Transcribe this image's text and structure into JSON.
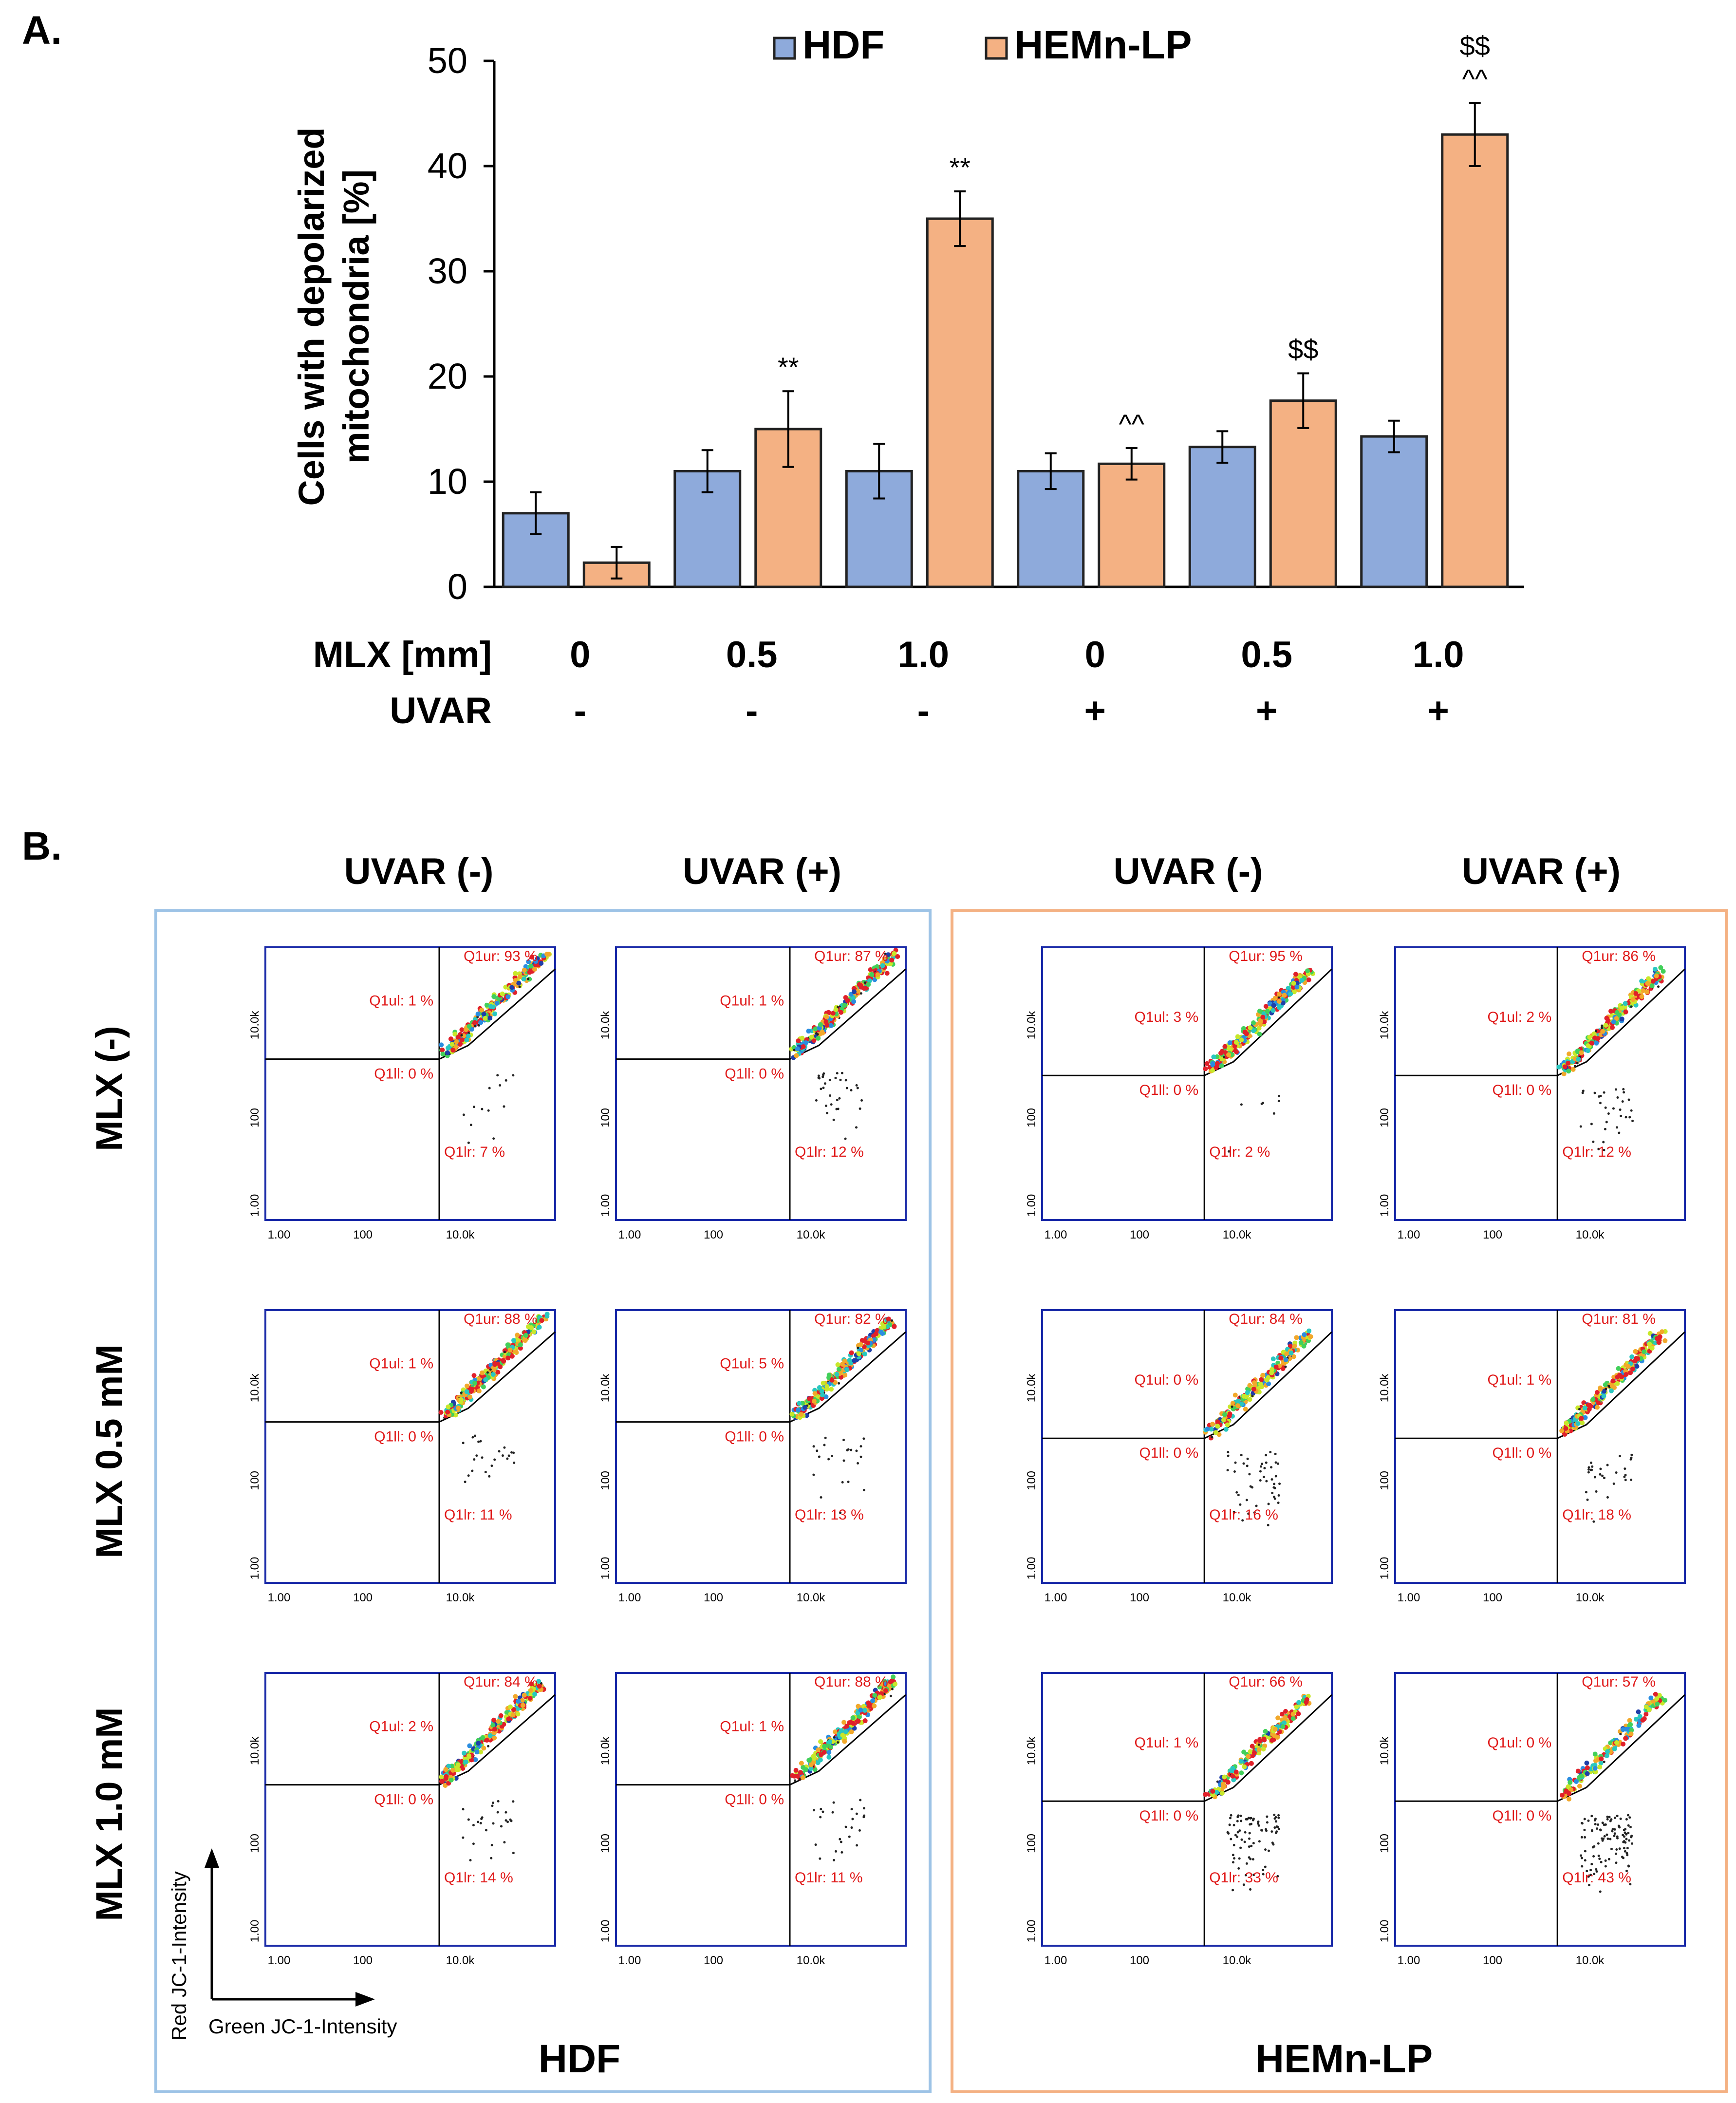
{
  "panel_a": {
    "label": "A.",
    "chart_data": {
      "type": "bar",
      "categories": [
        "MLX 0 / UVAR -",
        "MLX 0.5 / UVAR -",
        "MLX 1.0 / UVAR -",
        "MLX 0 / UVAR +",
        "MLX 0.5 / UVAR +",
        "MLX 1.0 / UVAR +"
      ],
      "series": [
        {
          "name": "HDF",
          "color": "#8eaadb",
          "values": [
            7,
            11,
            11,
            11,
            13.3,
            14.3
          ],
          "errors": [
            2.0,
            2.0,
            2.6,
            1.7,
            1.5,
            1.5
          ]
        },
        {
          "name": "HEMn-LP",
          "color": "#f4b183",
          "values": [
            2.3,
            15,
            35,
            11.7,
            17.7,
            43
          ],
          "errors": [
            1.5,
            3.6,
            2.6,
            1.5,
            2.6,
            3.0
          ]
        }
      ],
      "ylabel": "Cells with depolarized mitochondria [%]",
      "ylabel_line1": "Cells with depolarized",
      "ylabel_line2": "mitochondria [%]",
      "ylim": [
        0,
        50
      ],
      "yticks": [
        0,
        10,
        20,
        30,
        40,
        50
      ],
      "legend": [
        "HDF",
        "HEMn-LP"
      ],
      "legend_position": "top-center",
      "significance": [
        {
          "group": 1,
          "series": 1,
          "lines": [
            "**"
          ]
        },
        {
          "group": 2,
          "series": 1,
          "lines": [
            "**"
          ]
        },
        {
          "group": 3,
          "series": 1,
          "lines": [
            "^^"
          ]
        },
        {
          "group": 4,
          "series": 1,
          "lines": [
            "$$"
          ]
        },
        {
          "group": 5,
          "series": 1,
          "lines": [
            "$$",
            "^^"
          ]
        }
      ],
      "x_rows": [
        {
          "label": "MLX [mm]",
          "values": [
            "0",
            "0.5",
            "1.0",
            "0",
            "0.5",
            "1.0"
          ]
        },
        {
          "label": "UVAR",
          "values": [
            "-",
            "-",
            "-",
            "+",
            "+",
            "+"
          ]
        }
      ]
    }
  },
  "panel_b": {
    "label": "B.",
    "col_headers": [
      "UVAR (-)",
      "UVAR (+)",
      "UVAR (-)",
      "UVAR (+)"
    ],
    "row_headers": [
      "MLX (-)",
      "MLX 0.5 mM",
      "MLX 1.0 mM"
    ],
    "group_labels": [
      "HDF",
      "HEMn-LP"
    ],
    "group_colors": [
      "#9dc3e6",
      "#f4b183"
    ],
    "axis_y_label": "Red JC-1-Intensity",
    "axis_x_label": "Green JC-1-Intensity",
    "tick_labels": [
      "1.00",
      "100",
      "10.0k"
    ],
    "quadrant_prefixes": [
      "Q1ur: ",
      "Q1ul: ",
      "Q1ll: ",
      "Q1lr: "
    ],
    "chart_data": {
      "type": "scatter",
      "description_axes": {
        "x": "Green JC-1-Intensity (log)",
        "y": "Red JC-1-Intensity (log)"
      },
      "plots": [
        {
          "group": "HDF",
          "mlx": "MLX (-)",
          "uvar": "UVAR (-)",
          "ur": "93 %",
          "ul": "1 %",
          "ll": "0 %",
          "lr": "7 %"
        },
        {
          "group": "HDF",
          "mlx": "MLX (-)",
          "uvar": "UVAR (+)",
          "ur": "87 %",
          "ul": "1 %",
          "ll": "0 %",
          "lr": "12 %"
        },
        {
          "group": "HEMn-LP",
          "mlx": "MLX (-)",
          "uvar": "UVAR (-)",
          "ur": "95 %",
          "ul": "3 %",
          "ll": "0 %",
          "lr": "2 %"
        },
        {
          "group": "HEMn-LP",
          "mlx": "MLX (-)",
          "uvar": "UVAR (+)",
          "ur": "86 %",
          "ul": "2 %",
          "ll": "0 %",
          "lr": "12 %"
        },
        {
          "group": "HDF",
          "mlx": "MLX 0.5 mM",
          "uvar": "UVAR (-)",
          "ur": "88 %",
          "ul": "1 %",
          "ll": "0 %",
          "lr": "11 %"
        },
        {
          "group": "HDF",
          "mlx": "MLX 0.5 mM",
          "uvar": "UVAR (+)",
          "ur": "82 %",
          "ul": "5 %",
          "ll": "0 %",
          "lr": "13 %"
        },
        {
          "group": "HEMn-LP",
          "mlx": "MLX 0.5 mM",
          "uvar": "UVAR (-)",
          "ur": "84 %",
          "ul": "0 %",
          "ll": "0 %",
          "lr": "16 %"
        },
        {
          "group": "HEMn-LP",
          "mlx": "MLX 0.5 mM",
          "uvar": "UVAR (+)",
          "ur": "81 %",
          "ul": "1 %",
          "ll": "0 %",
          "lr": "18 %"
        },
        {
          "group": "HDF",
          "mlx": "MLX 1.0 mM",
          "uvar": "UVAR (-)",
          "ur": "84 %",
          "ul": "2 %",
          "ll": "0 %",
          "lr": "14 %"
        },
        {
          "group": "HDF",
          "mlx": "MLX 1.0 mM",
          "uvar": "UVAR (+)",
          "ur": "88 %",
          "ul": "1 %",
          "ll": "0 %",
          "lr": "11 %"
        },
        {
          "group": "HEMn-LP",
          "mlx": "MLX 1.0 mM",
          "uvar": "UVAR (-)",
          "ur": "66 %",
          "ul": "1 %",
          "ll": "0 %",
          "lr": "33 %"
        },
        {
          "group": "HEMn-LP",
          "mlx": "MLX 1.0 mM",
          "uvar": "UVAR (+)",
          "ur": "57 %",
          "ul": "0 %",
          "ll": "0 %",
          "lr": "43 %"
        }
      ]
    }
  }
}
